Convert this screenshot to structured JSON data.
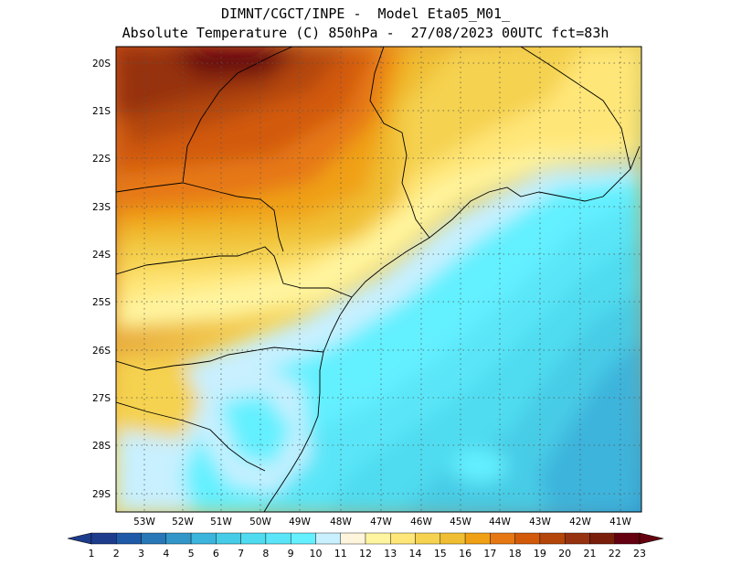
{
  "header": {
    "line1": "DIMNT/CGCT/INPE -  Model Eta05_M01_",
    "line2": "Absolute Temperature (C) 850hPa -  27/08/2023 00UTC fct=83h"
  },
  "lat_labels": [
    "20S",
    "21S",
    "22S",
    "23S",
    "24S",
    "25S",
    "26S",
    "27S",
    "28S",
    "29S"
  ],
  "lon_labels": [
    "53W",
    "52W",
    "51W",
    "50W",
    "49W",
    "48W",
    "47W",
    "46W",
    "45W",
    "44W",
    "43W",
    "42W",
    "41W"
  ],
  "colorbar": {
    "labels": [
      "1",
      "2",
      "3",
      "4",
      "5",
      "6",
      "7",
      "8",
      "9",
      "10",
      "11",
      "12",
      "13",
      "14",
      "15",
      "16",
      "17",
      "18",
      "19",
      "20",
      "21",
      "22",
      "23"
    ],
    "colors": [
      "#1e3c8c",
      "#1f5aa8",
      "#2878b8",
      "#3296c8",
      "#3cb4dc",
      "#46cce6",
      "#50dcf0",
      "#5ae6f8",
      "#64f0ff",
      "#c8f0ff",
      "#fff5dc",
      "#fff5a0",
      "#ffe678",
      "#f5d250",
      "#f0be32",
      "#f0a014",
      "#e67814",
      "#d25a0a",
      "#b4460a",
      "#963210",
      "#781e0a",
      "#64000f"
    ]
  }
}
